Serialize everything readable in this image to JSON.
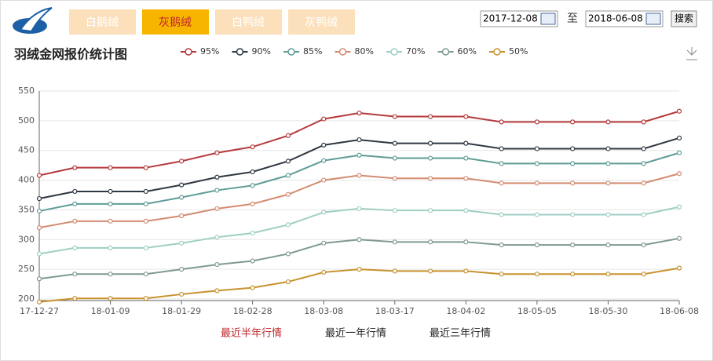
{
  "tabs": [
    "白鹅绒",
    "灰鹅绒",
    "白鸭绒",
    "灰鸭绒"
  ],
  "search": {
    "start": "2017-12-08",
    "separator": "至",
    "end": "2018-06-08",
    "button": "搜索"
  },
  "links": [
    "最近半年行情",
    "最近一年行情",
    "最近三年行情"
  ],
  "chart_data": {
    "type": "line",
    "title": "羽绒金网报价统计图",
    "categories": [
      "17-12-27",
      null,
      "18-01-09",
      null,
      "18-01-29",
      null,
      "18-02-28",
      null,
      "18-03-08",
      null,
      "18-03-17",
      null,
      "18-04-02",
      null,
      "18-05-05",
      null,
      "18-05-30",
      null,
      "18-06-08"
    ],
    "series": [
      {
        "name": "95%",
        "color": "#b5393b",
        "values": [
          408,
          421,
          421,
          421,
          432,
          446,
          456,
          475,
          503,
          513,
          507,
          507,
          507,
          498,
          498,
          498,
          498,
          498,
          516
        ]
      },
      {
        "name": "90%",
        "color": "#2f3742",
        "values": [
          369,
          381,
          381,
          381,
          392,
          405,
          414,
          432,
          459,
          468,
          462,
          462,
          462,
          453,
          453,
          453,
          453,
          453,
          471
        ]
      },
      {
        "name": "85%",
        "color": "#5e9c97",
        "values": [
          348,
          360,
          360,
          360,
          371,
          383,
          391,
          408,
          433,
          442,
          437,
          437,
          437,
          428,
          428,
          428,
          428,
          428,
          446
        ]
      },
      {
        "name": "80%",
        "color": "#d38b71",
        "values": [
          320,
          331,
          331,
          331,
          340,
          352,
          360,
          376,
          400,
          408,
          403,
          403,
          403,
          395,
          395,
          395,
          395,
          395,
          411
        ]
      },
      {
        "name": "70%",
        "color": "#9fcfc4",
        "values": [
          276,
          286,
          286,
          286,
          294,
          304,
          311,
          325,
          346,
          352,
          349,
          349,
          349,
          342,
          342,
          342,
          342,
          342,
          355
        ]
      },
      {
        "name": "60%",
        "color": "#7f9a90",
        "values": [
          234,
          242,
          242,
          242,
          250,
          258,
          264,
          276,
          294,
          300,
          296,
          296,
          296,
          291,
          291,
          291,
          291,
          291,
          302
        ]
      },
      {
        "name": "50%",
        "color": "#c8922e",
        "values": [
          195,
          201,
          201,
          201,
          208,
          214,
          219,
          229,
          245,
          250,
          247,
          247,
          247,
          242,
          242,
          242,
          242,
          242,
          252
        ]
      }
    ],
    "ylim": [
      200,
      550
    ],
    "yticks": [
      200,
      250,
      300,
      350,
      400,
      450,
      500,
      550
    ],
    "grid": true,
    "legend": "top"
  }
}
